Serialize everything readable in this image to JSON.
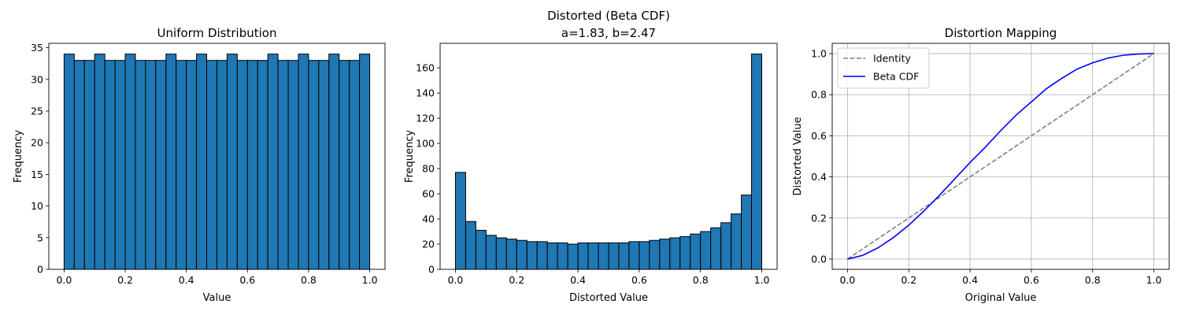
{
  "chart_data": [
    {
      "type": "bar",
      "title": "Uniform Distribution",
      "xlabel": "Value",
      "ylabel": "Frequency",
      "xlim": [
        -0.05,
        1.05
      ],
      "ylim": [
        0,
        35.7
      ],
      "x_ticks": [
        0.0,
        0.2,
        0.4,
        0.6,
        0.8,
        1.0
      ],
      "y_ticks": [
        0,
        5,
        10,
        15,
        20,
        25,
        30,
        35
      ],
      "bin_start": 0.0,
      "bin_width": 0.03333,
      "values": [
        34,
        33,
        33,
        34,
        33,
        33,
        34,
        33,
        33,
        33,
        34,
        33,
        33,
        34,
        33,
        33,
        34,
        33,
        33,
        33,
        34,
        33,
        33,
        34,
        33,
        33,
        34,
        33,
        33,
        34
      ],
      "bar_color": "#1f77b4",
      "edge_color": "#000000",
      "grid": false
    },
    {
      "type": "bar",
      "title": "Distorted (Beta CDF)",
      "subtitle": "a=1.83, b=2.47",
      "xlabel": "Distorted Value",
      "ylabel": "Frequency",
      "xlim": [
        -0.05,
        1.05
      ],
      "ylim": [
        0,
        179.5
      ],
      "x_ticks": [
        0.0,
        0.2,
        0.4,
        0.6,
        0.8,
        1.0
      ],
      "y_ticks": [
        0,
        20,
        40,
        60,
        80,
        100,
        120,
        140,
        160
      ],
      "bin_start": 0.0,
      "bin_width": 0.03333,
      "values": [
        77,
        38,
        31,
        27,
        25,
        24,
        23,
        22,
        22,
        21,
        21,
        20,
        21,
        21,
        21,
        21,
        21,
        22,
        22,
        23,
        24,
        25,
        26,
        28,
        30,
        33,
        37,
        44,
        59,
        171
      ],
      "bar_color": "#1f77b4",
      "edge_color": "#000000",
      "grid": false
    },
    {
      "type": "line",
      "title": "Distortion Mapping",
      "xlabel": "Original Value",
      "ylabel": "Distorted Value",
      "xlim": [
        -0.05,
        1.05
      ],
      "ylim": [
        -0.05,
        1.05
      ],
      "x_ticks": [
        0.0,
        0.2,
        0.4,
        0.6,
        0.8,
        1.0
      ],
      "y_ticks": [
        0.0,
        0.2,
        0.4,
        0.6,
        0.8,
        1.0
      ],
      "grid": true,
      "legend": "top-left",
      "series": [
        {
          "name": "Identity",
          "color": "#808080",
          "dashed": true,
          "x": [
            0.0,
            1.0
          ],
          "y": [
            0.0,
            1.0
          ]
        },
        {
          "name": "Beta CDF",
          "color": "#0000ff",
          "dashed": false,
          "x": [
            0.0,
            0.05,
            0.1,
            0.15,
            0.2,
            0.25,
            0.3,
            0.35,
            0.4,
            0.45,
            0.5,
            0.55,
            0.6,
            0.65,
            0.7,
            0.75,
            0.8,
            0.85,
            0.9,
            0.95,
            1.0
          ],
          "y": [
            0.0,
            0.018,
            0.055,
            0.105,
            0.165,
            0.235,
            0.31,
            0.39,
            0.47,
            0.545,
            0.625,
            0.7,
            0.765,
            0.83,
            0.88,
            0.925,
            0.955,
            0.978,
            0.992,
            0.998,
            1.0
          ]
        }
      ]
    }
  ]
}
